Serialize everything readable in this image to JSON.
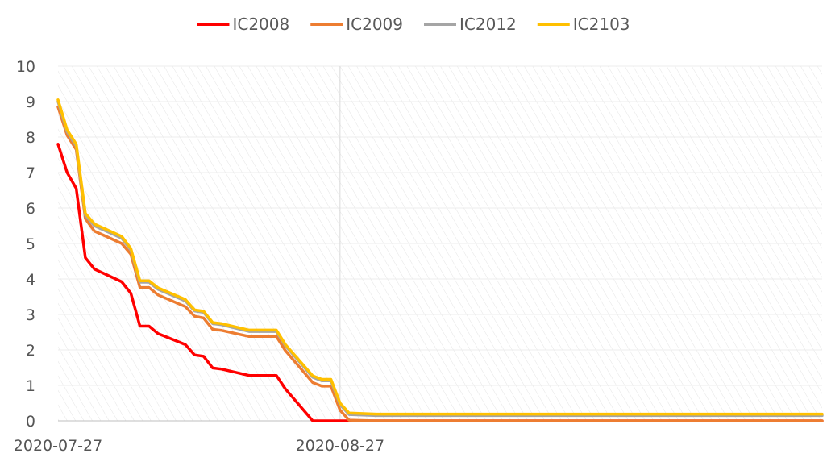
{
  "chart_data": {
    "type": "line",
    "title": "",
    "xlabel": "",
    "ylabel": "",
    "x_axis": {
      "start": "2020-07-27",
      "end": "2020-10-19",
      "tick_labels": [
        "2020-07-27",
        "2020-08-27"
      ]
    },
    "ylim": [
      0,
      10
    ],
    "y_ticks": [
      "0",
      "1",
      "2",
      "3",
      "4",
      "5",
      "6",
      "7",
      "8",
      "9",
      "10"
    ],
    "grid": "horizontal, hatched plot area",
    "legend_position": "top",
    "colors": {
      "IC2008": "#ff0000",
      "IC2009": "#ed7d31",
      "IC2012": "#a5a5a5",
      "IC2103": "#ffc000"
    },
    "series": [
      {
        "name": "IC2008",
        "points": [
          [
            "2020-07-27",
            7.8
          ],
          [
            "2020-07-28",
            7.0
          ],
          [
            "2020-07-29",
            6.55
          ],
          [
            "2020-07-30",
            4.6
          ],
          [
            "2020-07-31",
            4.28
          ],
          [
            "2020-08-03",
            3.92
          ],
          [
            "2020-08-04",
            3.6
          ],
          [
            "2020-08-05",
            2.67
          ],
          [
            "2020-08-06",
            2.67
          ],
          [
            "2020-08-07",
            2.46
          ],
          [
            "2020-08-10",
            2.15
          ],
          [
            "2020-08-11",
            1.86
          ],
          [
            "2020-08-12",
            1.82
          ],
          [
            "2020-08-13",
            1.49
          ],
          [
            "2020-08-14",
            1.46
          ],
          [
            "2020-08-17",
            1.28
          ],
          [
            "2020-08-18",
            1.28
          ],
          [
            "2020-08-19",
            1.28
          ],
          [
            "2020-08-20",
            1.28
          ],
          [
            "2020-08-21",
            0.9
          ],
          [
            "2020-08-24",
            0.0
          ],
          [
            "2020-08-25",
            0.0
          ],
          [
            "2020-08-26",
            0.0
          ],
          [
            "2020-08-27",
            0.0
          ],
          [
            "2020-10-19",
            0.0
          ]
        ]
      },
      {
        "name": "IC2009",
        "points": [
          [
            "2020-07-27",
            8.85
          ],
          [
            "2020-07-28",
            8.05
          ],
          [
            "2020-07-29",
            7.65
          ],
          [
            "2020-07-30",
            5.7
          ],
          [
            "2020-07-31",
            5.35
          ],
          [
            "2020-08-03",
            5.0
          ],
          [
            "2020-08-04",
            4.7
          ],
          [
            "2020-08-05",
            3.76
          ],
          [
            "2020-08-06",
            3.76
          ],
          [
            "2020-08-07",
            3.55
          ],
          [
            "2020-08-10",
            3.22
          ],
          [
            "2020-08-11",
            2.95
          ],
          [
            "2020-08-12",
            2.9
          ],
          [
            "2020-08-13",
            2.58
          ],
          [
            "2020-08-14",
            2.55
          ],
          [
            "2020-08-17",
            2.38
          ],
          [
            "2020-08-18",
            2.38
          ],
          [
            "2020-08-19",
            2.38
          ],
          [
            "2020-08-20",
            2.38
          ],
          [
            "2020-08-21",
            1.98
          ],
          [
            "2020-08-24",
            1.08
          ],
          [
            "2020-08-25",
            0.98
          ],
          [
            "2020-08-26",
            0.98
          ],
          [
            "2020-08-27",
            0.3
          ],
          [
            "2020-08-28",
            0.02
          ],
          [
            "2020-08-31",
            0.0
          ],
          [
            "2020-10-19",
            0.0
          ]
        ]
      },
      {
        "name": "IC2012",
        "points": [
          [
            "2020-07-27",
            9.0
          ],
          [
            "2020-07-28",
            8.15
          ],
          [
            "2020-07-29",
            7.75
          ],
          [
            "2020-07-30",
            5.8
          ],
          [
            "2020-07-31",
            5.5
          ],
          [
            "2020-08-03",
            5.15
          ],
          [
            "2020-08-04",
            4.82
          ],
          [
            "2020-08-05",
            3.91
          ],
          [
            "2020-08-06",
            3.91
          ],
          [
            "2020-08-07",
            3.71
          ],
          [
            "2020-08-10",
            3.38
          ],
          [
            "2020-08-11",
            3.1
          ],
          [
            "2020-08-12",
            3.06
          ],
          [
            "2020-08-13",
            2.74
          ],
          [
            "2020-08-14",
            2.71
          ],
          [
            "2020-08-17",
            2.52
          ],
          [
            "2020-08-18",
            2.52
          ],
          [
            "2020-08-19",
            2.52
          ],
          [
            "2020-08-20",
            2.52
          ],
          [
            "2020-08-21",
            2.12
          ],
          [
            "2020-08-24",
            1.23
          ],
          [
            "2020-08-25",
            1.13
          ],
          [
            "2020-08-26",
            1.13
          ],
          [
            "2020-08-27",
            0.46
          ],
          [
            "2020-08-28",
            0.18
          ],
          [
            "2020-08-31",
            0.15
          ],
          [
            "2020-10-19",
            0.15
          ]
        ]
      },
      {
        "name": "IC2103",
        "points": [
          [
            "2020-07-27",
            9.05
          ],
          [
            "2020-07-28",
            8.2
          ],
          [
            "2020-07-29",
            7.8
          ],
          [
            "2020-07-30",
            5.85
          ],
          [
            "2020-07-31",
            5.55
          ],
          [
            "2020-08-03",
            5.2
          ],
          [
            "2020-08-04",
            4.86
          ],
          [
            "2020-08-05",
            3.95
          ],
          [
            "2020-08-06",
            3.95
          ],
          [
            "2020-08-07",
            3.75
          ],
          [
            "2020-08-10",
            3.42
          ],
          [
            "2020-08-11",
            3.13
          ],
          [
            "2020-08-12",
            3.09
          ],
          [
            "2020-08-13",
            2.77
          ],
          [
            "2020-08-14",
            2.74
          ],
          [
            "2020-08-17",
            2.56
          ],
          [
            "2020-08-18",
            2.56
          ],
          [
            "2020-08-19",
            2.56
          ],
          [
            "2020-08-20",
            2.56
          ],
          [
            "2020-08-21",
            2.15
          ],
          [
            "2020-08-24",
            1.27
          ],
          [
            "2020-08-25",
            1.17
          ],
          [
            "2020-08-26",
            1.17
          ],
          [
            "2020-08-27",
            0.5
          ],
          [
            "2020-08-28",
            0.22
          ],
          [
            "2020-08-31",
            0.19
          ],
          [
            "2020-10-19",
            0.19
          ]
        ]
      }
    ]
  }
}
